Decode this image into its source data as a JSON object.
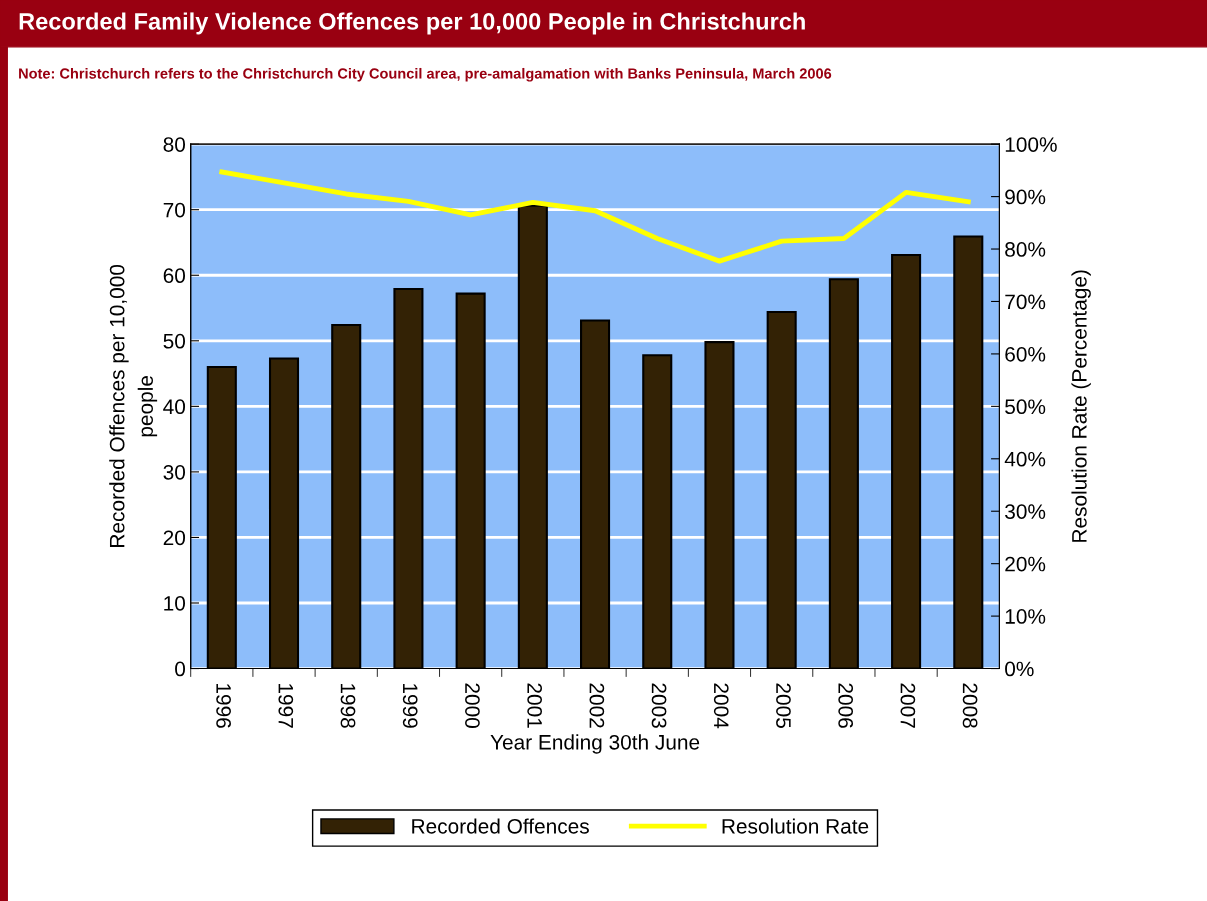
{
  "chart_data": {
    "type": "bar",
    "title": "Recorded Family Violence Offences per 10,000 People in Christchurch",
    "subtitle": "Note: Christchurch refers to the Christchurch City Council area, pre-amalgamation with Banks Peninsula, March 2006",
    "xlabel": "Year Ending 30th June",
    "ylabel": "Recorded Offences per 10,000\npeople",
    "y2label": "Resolution Rate (Percentage)",
    "categories": [
      "1996",
      "1997",
      "1998",
      "1999",
      "2000",
      "2001",
      "2002",
      "2003",
      "2004",
      "2005",
      "2006",
      "2007",
      "2008"
    ],
    "series": [
      {
        "name": "Recorded Offences",
        "color": "#332205",
        "values": [
          46.0,
          47.3,
          52.4,
          57.9,
          57.2,
          70.6,
          53.1,
          47.8,
          49.8,
          54.4,
          59.4,
          63.1,
          65.9
        ]
      },
      {
        "name": "Resolution Rate",
        "type": "line",
        "axis": "y2",
        "color": "#ffff00",
        "values": [
          94.7,
          92.6,
          90.5,
          89.1,
          86.5,
          88.9,
          87.3,
          82.0,
          77.7,
          81.5,
          82.0,
          90.8,
          89.0
        ]
      }
    ],
    "ylim": [
      0,
      80
    ],
    "yticks": [
      0,
      10,
      20,
      30,
      40,
      50,
      60,
      70,
      80
    ],
    "y2lim": [
      0,
      100
    ],
    "y2ticks": [
      {
        "value": 0,
        "label": "0%"
      },
      {
        "value": 10,
        "label": "10%"
      },
      {
        "value": 20,
        "label": "20%"
      },
      {
        "value": 30,
        "label": "30%"
      },
      {
        "value": 40,
        "label": "40%"
      },
      {
        "value": 50,
        "label": "50%"
      },
      {
        "value": 60,
        "label": "60%"
      },
      {
        "value": 70,
        "label": "70%"
      },
      {
        "value": 80,
        "label": "80%"
      },
      {
        "value": 90,
        "label": "90%"
      },
      {
        "value": 100,
        "label": "100%"
      }
    ],
    "grid": "y",
    "legend": "bottom",
    "marker": "none",
    "line_style": "solid"
  }
}
